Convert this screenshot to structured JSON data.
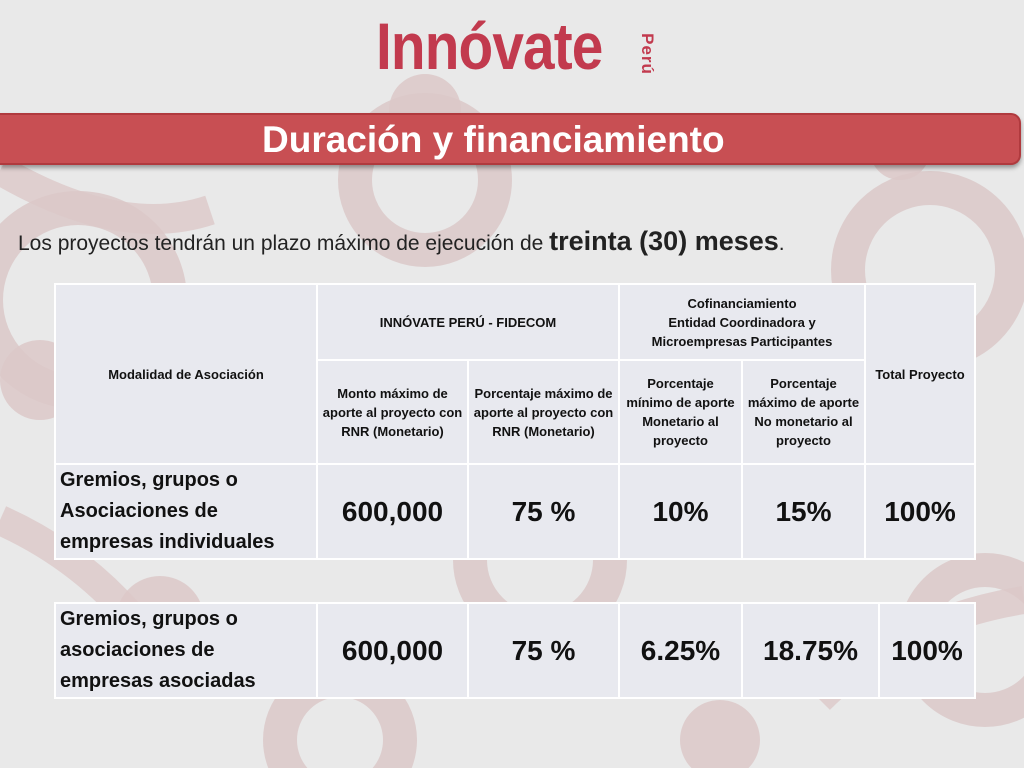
{
  "logo": {
    "main": "Innóvate",
    "sub": "Perú"
  },
  "title": "Duración y financiamiento",
  "intro": {
    "prefix": "Los proyectos tendrán un plazo máximo de ejecución de ",
    "emphasis": "treinta (30) meses",
    "suffix": "."
  },
  "table": {
    "headers": {
      "modalidad": "Modalidad de Asociación",
      "innovate": "INNÓVATE PERÚ - FIDECOM",
      "cofinanciamiento": "Cofinanciamiento\nEntidad Coordinadora y Microempresas Participantes",
      "total": "Total Proyecto",
      "monto": "Monto máximo de aporte al proyecto con RNR (Monetario)",
      "porcentaje_max": "Porcentaje máximo de aporte al proyecto con RNR (Monetario)",
      "porcentaje_min_monetario": "Porcentaje mínimo de aporte Monetario al proyecto",
      "porcentaje_max_no_monetario": "Porcentaje máximo de aporte No monetario al proyecto"
    },
    "rows": [
      {
        "label": "Gremios, grupos o Asociaciones de empresas individuales",
        "monto": "600,000",
        "porcentaje_max": "75 %",
        "monetario": "10%",
        "no_monetario": "15%",
        "total": "100%"
      },
      {
        "label": "Gremios, grupos o asociaciones de empresas asociadas",
        "monto": "600,000",
        "porcentaje_max": "75 %",
        "monetario": "6.25%",
        "no_monetario": "18.75%",
        "total": "100%"
      }
    ]
  },
  "colors": {
    "brand": "#c23a4e",
    "title_bar": "#c84f53",
    "cell": "#e8e9ef",
    "background": "#e9e9e9"
  }
}
